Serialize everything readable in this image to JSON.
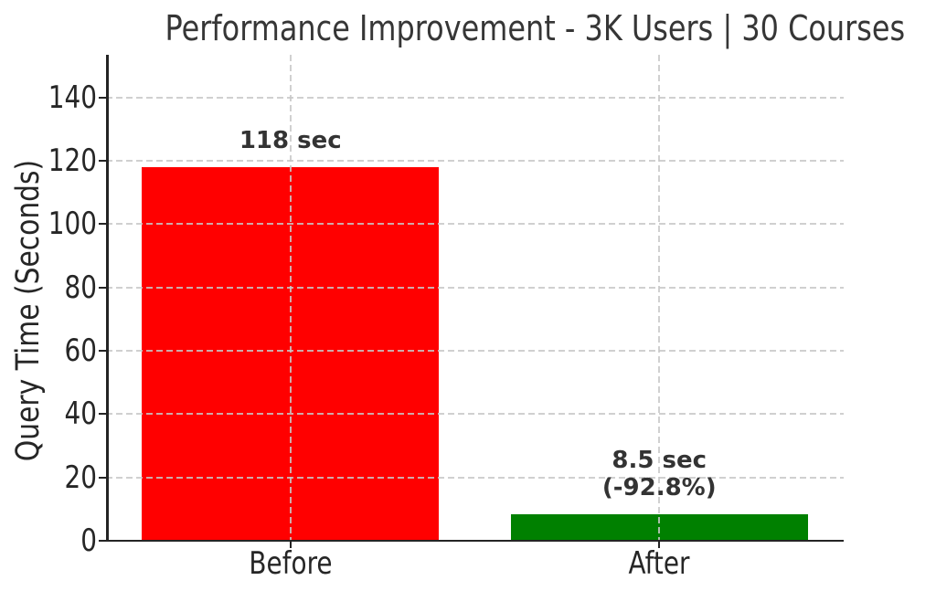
{
  "chart_data": {
    "type": "bar",
    "title": "Performance Improvement - 3K Users | 30 Courses",
    "xlabel": "",
    "ylabel": "Query Time (Seconds)",
    "categories": [
      "Before",
      "After"
    ],
    "values": [
      118,
      8.5
    ],
    "bar_colors": [
      "#ff0000",
      "#008000"
    ],
    "bar_annotations": [
      [
        "118 sec"
      ],
      [
        "8.5 sec",
        "(-92.8%)"
      ]
    ],
    "yticks": [
      0,
      20,
      40,
      60,
      80,
      100,
      120,
      140
    ],
    "ylim": [
      0,
      153.5
    ],
    "grid": "dashed light-gray, horizontal at y-ticks and vertical at category centers, drawn over bars",
    "legend": "none",
    "colors": {
      "grid": "#c8c8c8",
      "spine": "#242424",
      "tick_text": "#262626",
      "title_text": "#363636",
      "annotation_text": "#333333",
      "background": "#ffffff"
    }
  }
}
